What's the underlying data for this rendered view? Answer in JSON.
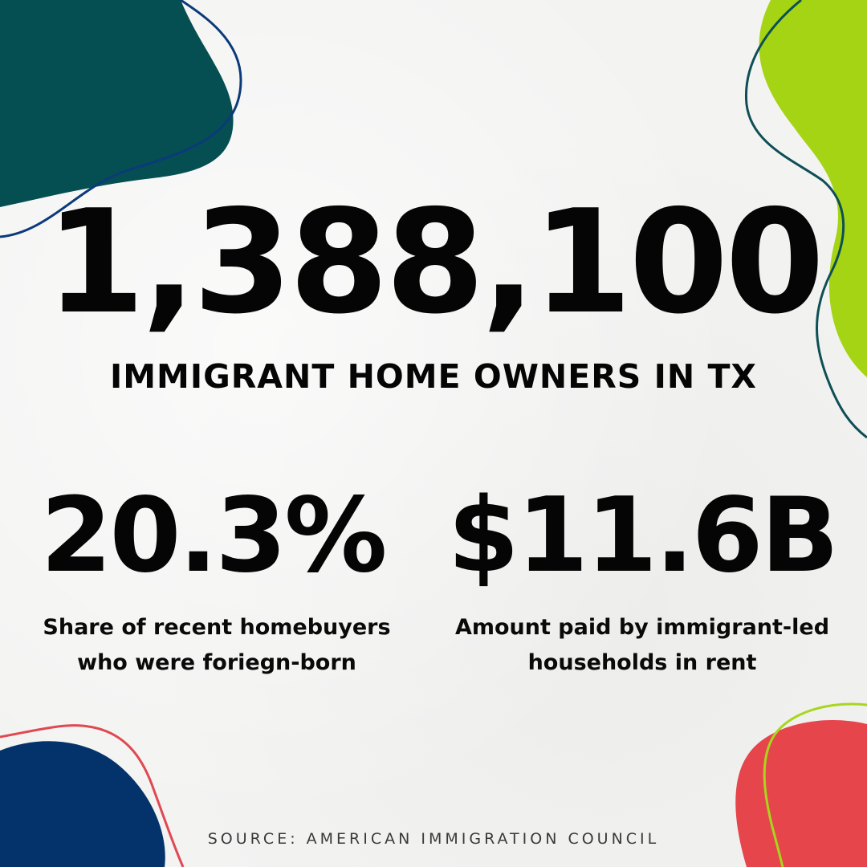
{
  "headline": {
    "value": "1,388,100",
    "label": "IMMIGRANT HOME OWNERS IN TX"
  },
  "stats": [
    {
      "value": "20.3%",
      "description_line1": "Share of recent homebuyers",
      "description_line2": "who were foriegn-born"
    },
    {
      "value": "$11.6B",
      "description_line1": "Amount paid by immigrant-led",
      "description_line2": "households in rent"
    }
  ],
  "source": "SOURCE: AMERICAN IMMIGRATION COUNCIL",
  "colors": {
    "background": "#f3f3f2",
    "teal_blob": "#054f52",
    "lime_blob": "#a4d414",
    "navy_blob": "#03336a",
    "red_blob": "#e5454b",
    "navy_line": "#0b3a7a",
    "teal_line": "#0d4f55",
    "red_line": "#e04852",
    "lime_line": "#a8d61c"
  }
}
